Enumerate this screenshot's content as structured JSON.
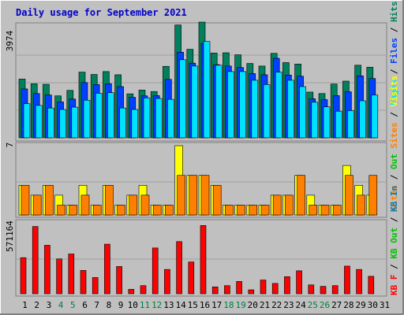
{
  "title": "Daily usage for September 2021",
  "colors": {
    "background": "#c0c0c0",
    "title": "#0000c8",
    "hits": "#00805c",
    "files": "#0040ff",
    "pages": "#00e0ff",
    "visits": "#ffff00",
    "sites": "#ff8000",
    "kbin": "#0080c0",
    "kbout": "#00c000",
    "kbf": "#ff0000",
    "weekend_label": "#008040"
  },
  "chart_data": [
    {
      "type": "bar",
      "name": "hits-files-pages",
      "ymax": 3974,
      "ymax_label": "3974",
      "legend": [
        "Pages",
        "Files",
        "Hits"
      ],
      "categories": [
        "1",
        "2",
        "3",
        "4",
        "5",
        "6",
        "7",
        "8",
        "9",
        "10",
        "11",
        "12",
        "13",
        "14",
        "15",
        "16",
        "17",
        "18",
        "19",
        "20",
        "21",
        "22",
        "23",
        "24",
        "25",
        "26",
        "27",
        "28",
        "29",
        "30",
        "31"
      ],
      "weekend_days": [
        "4",
        "5",
        "11",
        "12",
        "18",
        "19",
        "25",
        "26"
      ],
      "series": [
        {
          "name": "Hits",
          "values": [
            2030,
            1870,
            1850,
            1450,
            1640,
            2270,
            2190,
            2290,
            2180,
            1520,
            1650,
            1600,
            2470,
            3900,
            3060,
            4000,
            2930,
            2940,
            2870,
            2570,
            2480,
            2920,
            2600,
            2550,
            1580,
            1530,
            1860,
            1960,
            2510,
            2440,
            0
          ]
        },
        {
          "name": "Files",
          "values": [
            1690,
            1530,
            1480,
            1240,
            1340,
            1910,
            1840,
            1870,
            1770,
            1400,
            1450,
            1460,
            2020,
            2960,
            2580,
            3260,
            2530,
            2480,
            2430,
            2220,
            2180,
            2750,
            2170,
            2130,
            1350,
            1320,
            1460,
            1590,
            2140,
            2050,
            0
          ]
        },
        {
          "name": "Pages",
          "values": [
            1180,
            1120,
            1030,
            980,
            1060,
            1300,
            1540,
            1560,
            1030,
            980,
            1380,
            1360,
            1330,
            2700,
            2480,
            3330,
            2510,
            2290,
            2290,
            1990,
            1840,
            2270,
            1990,
            1770,
            1230,
            1070,
            920,
            940,
            1280,
            1480,
            0
          ]
        }
      ]
    },
    {
      "type": "bar",
      "name": "visits-sites",
      "ymax": 7,
      "ymax_label": "7",
      "legend": [
        "Sites",
        "Out",
        "Visits"
      ],
      "categories": [
        "1",
        "2",
        "3",
        "4",
        "5",
        "6",
        "7",
        "8",
        "9",
        "10",
        "11",
        "12",
        "13",
        "14",
        "15",
        "16",
        "17",
        "18",
        "19",
        "20",
        "21",
        "22",
        "23",
        "24",
        "25",
        "26",
        "27",
        "28",
        "29",
        "30",
        "31"
      ],
      "series": [
        {
          "name": "Visits",
          "values": [
            3,
            2,
            3,
            2,
            1,
            3,
            1,
            3,
            1,
            2,
            3,
            1,
            1,
            7,
            4,
            4,
            3,
            1,
            1,
            1,
            1,
            2,
            2,
            4,
            2,
            1,
            1,
            5,
            3,
            2,
            0
          ]
        },
        {
          "name": "Sites",
          "values": [
            3,
            2,
            3,
            1,
            1,
            2,
            1,
            3,
            1,
            2,
            2,
            1,
            1,
            4,
            4,
            4,
            3,
            1,
            1,
            1,
            1,
            2,
            2,
            4,
            1,
            1,
            1,
            4,
            2,
            4,
            0
          ]
        }
      ]
    },
    {
      "type": "bar",
      "name": "kbytes",
      "ymax": 571164,
      "ymax_label": "571164",
      "legend": [
        "KB F",
        "KB Out",
        "KB In"
      ],
      "categories": [
        "1",
        "2",
        "3",
        "4",
        "5",
        "6",
        "7",
        "8",
        "9",
        "10",
        "11",
        "12",
        "13",
        "14",
        "15",
        "16",
        "17",
        "18",
        "19",
        "20",
        "21",
        "22",
        "23",
        "24",
        "25",
        "26",
        "27",
        "28",
        "29",
        "30",
        "31"
      ],
      "series": [
        {
          "name": "KB F",
          "values": [
            294000,
            548000,
            395000,
            284000,
            324000,
            190000,
            132000,
            404000,
            222000,
            36000,
            66000,
            373000,
            198000,
            425000,
            259000,
            556000,
            56000,
            66000,
            100000,
            32000,
            112000,
            84000,
            139000,
            187000,
            72000,
            60000,
            66000,
            225000,
            198000,
            142000,
            0
          ]
        }
      ]
    }
  ]
}
